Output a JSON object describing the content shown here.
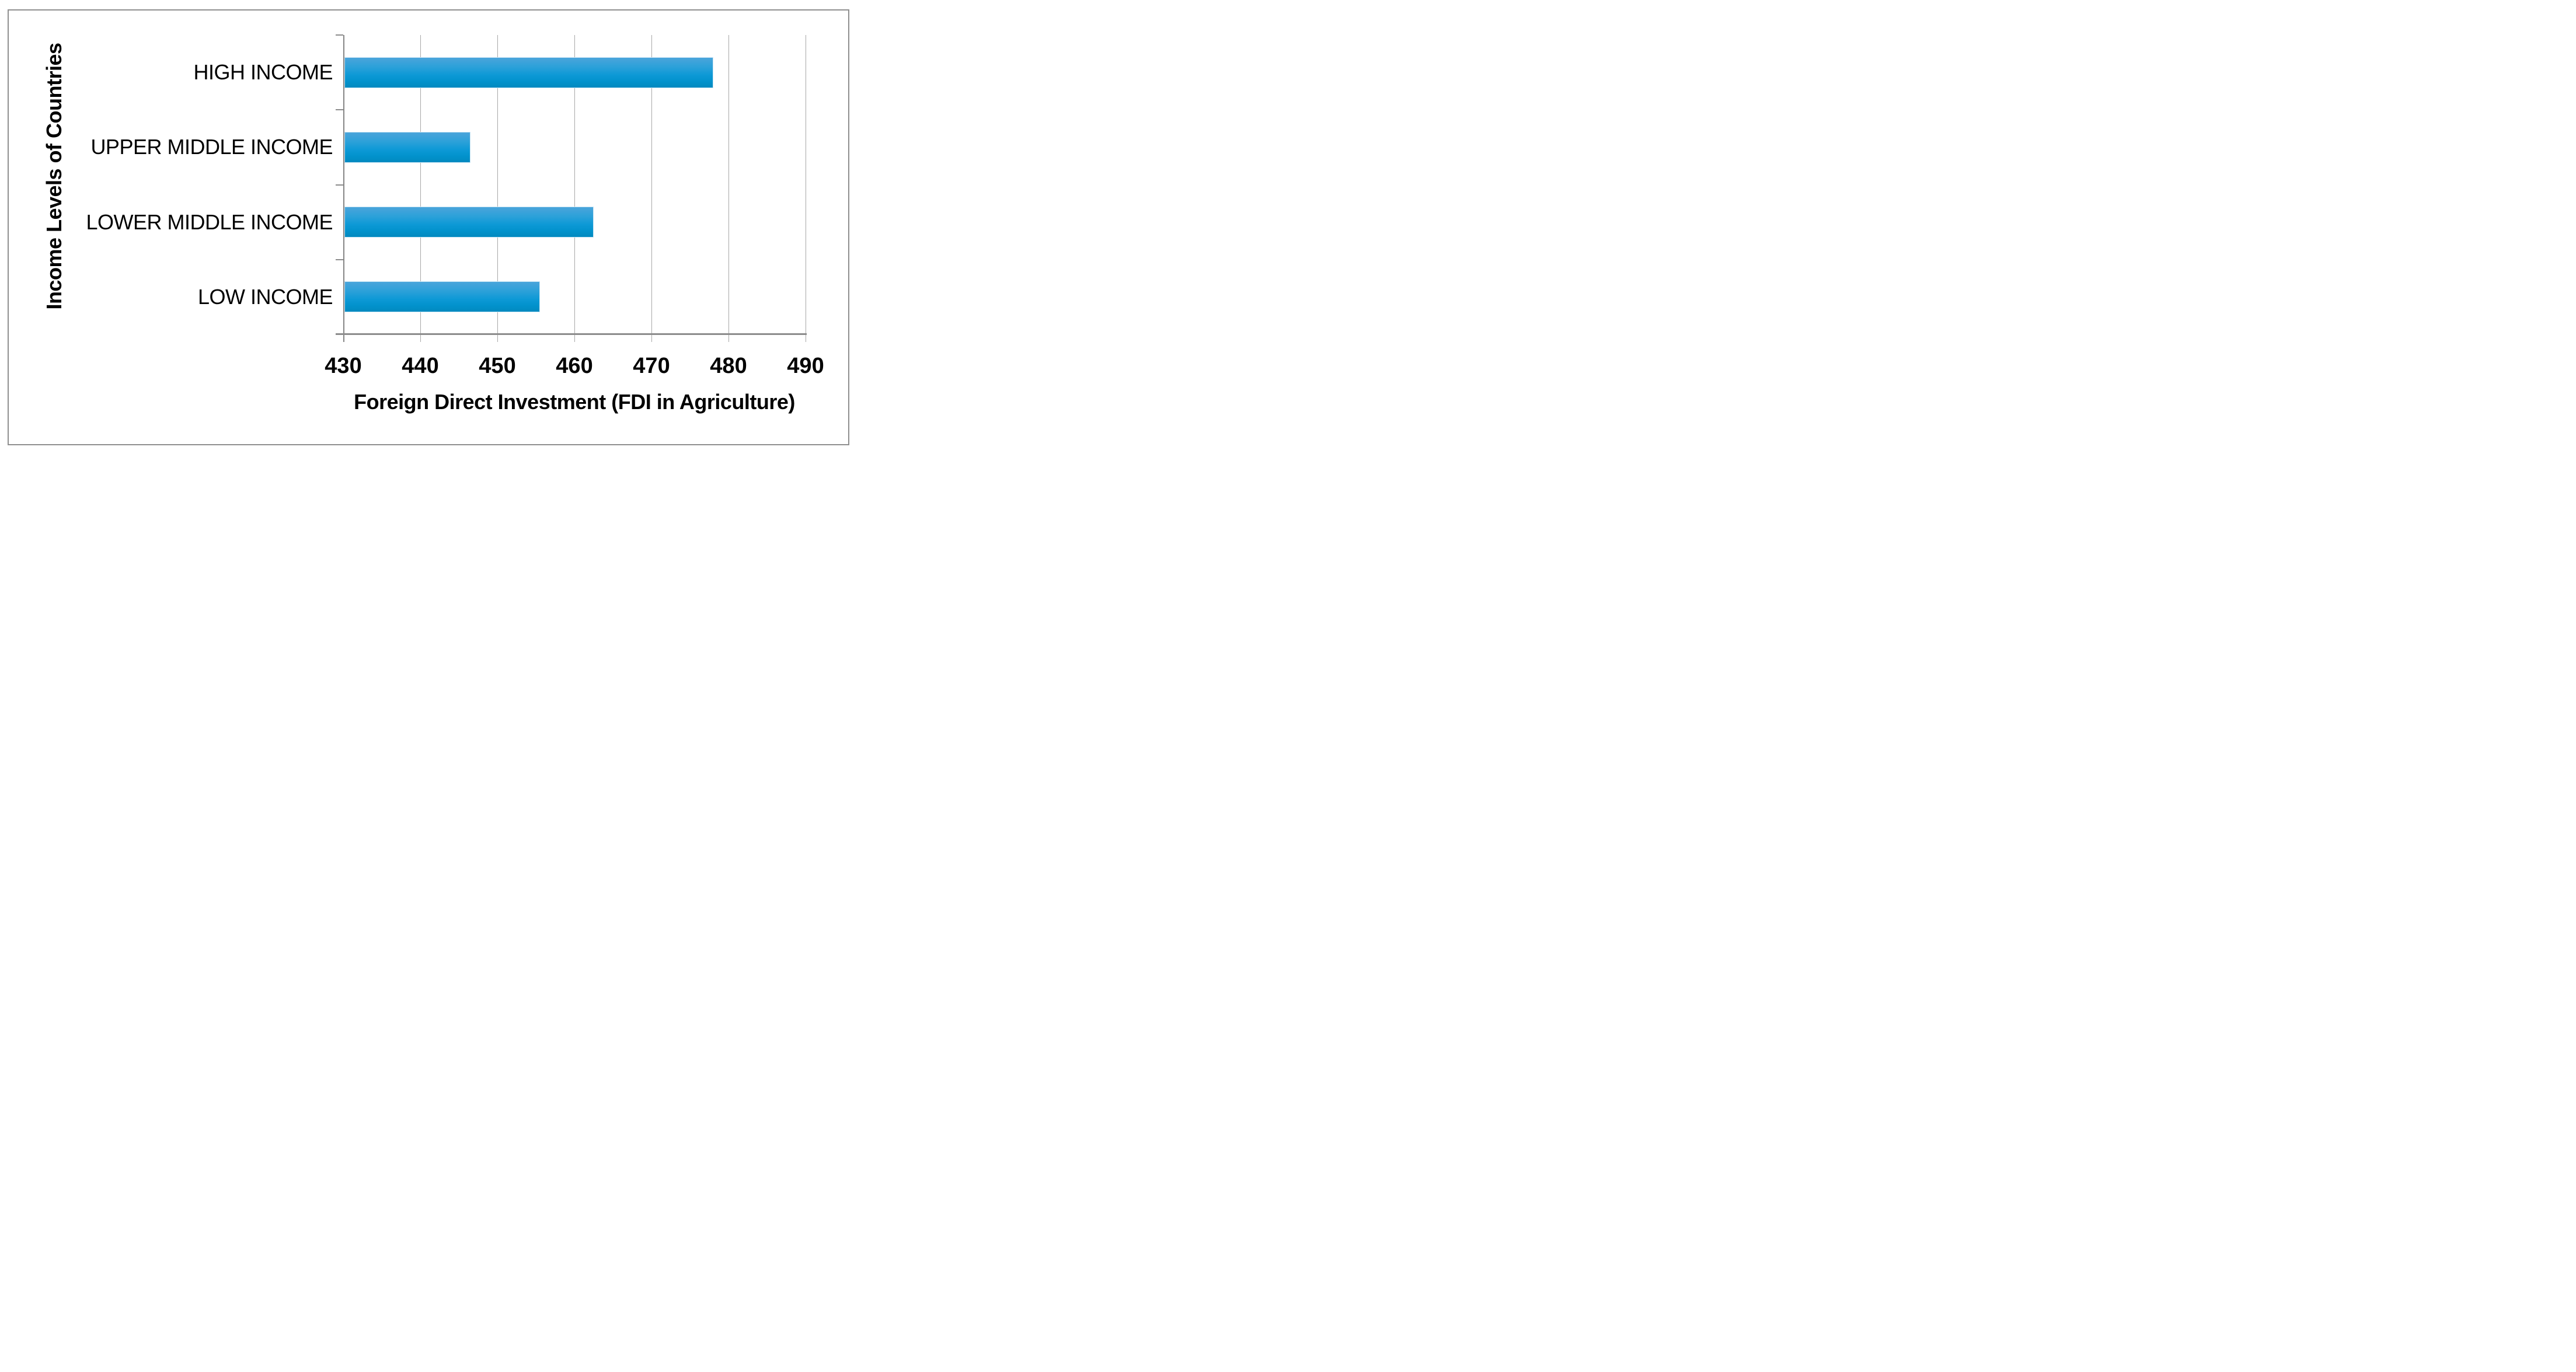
{
  "chart_data": {
    "type": "bar",
    "orientation": "horizontal",
    "title": "",
    "categories": [
      "HIGH INCOME",
      "UPPER MIDDLE INCOME",
      "LOWER MIDDLE INCOME",
      "LOW INCOME"
    ],
    "values": [
      478,
      446.5,
      462.5,
      455.5
    ],
    "xlabel": "Foreign Direct Investment (FDI in Agriculture)",
    "ylabel": "Income Levels of Countries",
    "xlim": [
      430,
      490
    ],
    "xticks": [
      430,
      440,
      450,
      460,
      470,
      480,
      490
    ],
    "grid": true,
    "legend": "none",
    "colors": {
      "bar_gradient_top": "#4aa4db",
      "bar_gradient_bottom": "#0189bf",
      "gridline": "#a8a8a8",
      "axis_line": "#8c8c8c",
      "outer_border": "#8f8f8f",
      "text": "#000000",
      "background": "#ffffff"
    }
  }
}
